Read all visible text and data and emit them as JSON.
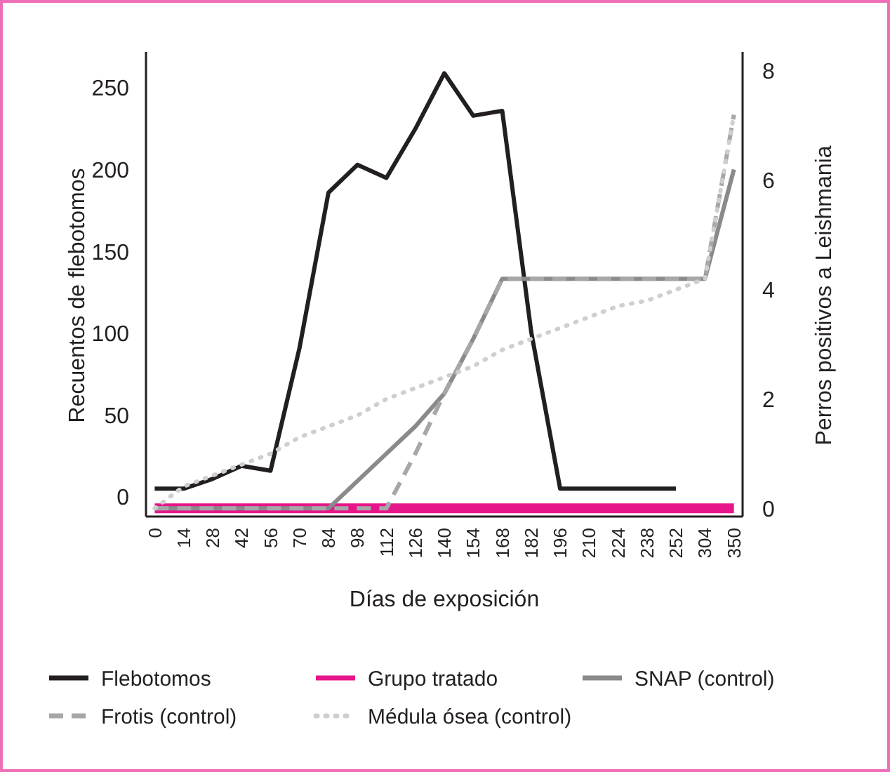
{
  "chart_data": {
    "type": "line",
    "xlabel": "Días de exposición",
    "ylabel": "Recuentos de flebotomos",
    "y2label": "Perros positivos a Leishmania",
    "categories": [
      "0",
      "14",
      "28",
      "42",
      "56",
      "70",
      "84",
      "98",
      "112",
      "126",
      "140",
      "154",
      "168",
      "182",
      "196",
      "210",
      "224",
      "238",
      "252",
      "304",
      "350"
    ],
    "series": [
      {
        "name": "Flebotomos",
        "color": "#231f20",
        "line_style": "solid",
        "values": [
          5,
          5,
          11,
          19,
          16,
          91,
          186,
          203,
          195,
          225,
          259,
          233,
          236,
          101,
          5,
          5,
          5,
          5,
          5,
          null,
          null
        ]
      },
      {
        "name": "Grupo tratado",
        "color": "#e6168a",
        "line_style": "solid",
        "axis": "y2",
        "values": [
          0,
          0,
          0,
          0,
          0,
          0,
          0,
          0,
          0,
          0,
          0,
          0,
          0,
          0,
          0,
          0,
          0,
          0,
          0,
          0,
          0
        ]
      },
      {
        "name": "SNAP (control)",
        "color": "#8a8a8a",
        "line_style": "solid",
        "axis": "y2",
        "values": [
          0,
          0,
          0,
          0,
          0,
          0,
          0,
          0.5,
          1,
          1.5,
          2.1,
          3.1,
          4.2,
          4.2,
          4.2,
          4.2,
          4.2,
          4.2,
          4.2,
          4.2,
          6.2
        ]
      },
      {
        "name": "Frotis (control)",
        "color": "#a7a7a9",
        "line_style": "dashed",
        "axis": "y2",
        "values": [
          0,
          0,
          0,
          0,
          0,
          0,
          0,
          0,
          0,
          1,
          2.1,
          3.1,
          4.2,
          4.2,
          4.2,
          4.2,
          4.2,
          4.2,
          4.2,
          4.2,
          7.2
        ]
      },
      {
        "name": "Médula ósea (control)",
        "color": "#cfcfcf",
        "line_style": "dotted",
        "axis": "y2",
        "values": [
          0,
          0.4,
          0.6,
          0.8,
          1.0,
          1.3,
          1.5,
          1.7,
          2.0,
          2.2,
          2.4,
          2.6,
          2.9,
          3.1,
          3.3,
          3.5,
          3.7,
          3.8,
          4.0,
          4.2,
          7.2
        ]
      }
    ],
    "ylim": [
      -12,
      272
    ],
    "yticks": [
      0,
      50,
      100,
      150,
      200,
      250
    ],
    "y2lim": [
      -0.15,
      8.35
    ],
    "y2ticks": [
      0,
      2,
      4,
      6,
      8
    ],
    "grid": false,
    "legend": "bottom",
    "marker": "none"
  }
}
